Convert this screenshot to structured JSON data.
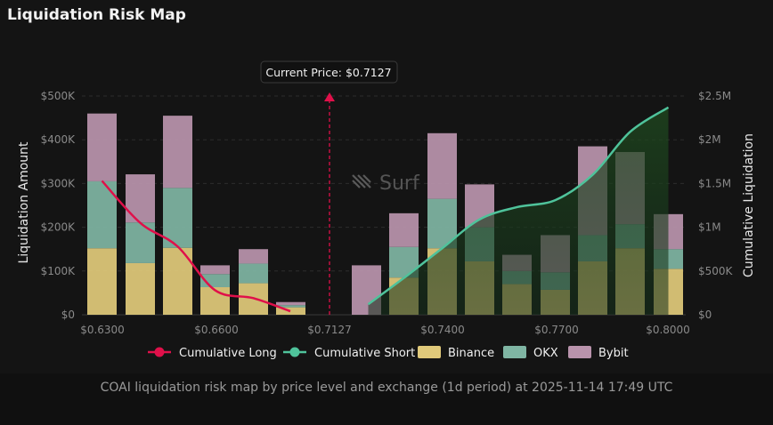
{
  "title": "Liquidation Risk Map",
  "caption": "COAI liquidation risk map by price level and exchange (1d period) at 2025-11-14 17:49 UTC",
  "watermark": "Surf",
  "tooltip": "Current Price: $0.7127",
  "colors": {
    "binance": "#e0c97a",
    "okx": "#7fb5a3",
    "bybit": "#b993ac",
    "long": "#e0104a",
    "short": "#4fc39b",
    "short_fill": "#1e3a1e"
  },
  "chart_data": {
    "type": "bar",
    "stacked": true,
    "current_price": 0.7127,
    "x_ticks": [
      "$0.6300",
      "$0.6600",
      "$0.7127",
      "$0.7400",
      "$0.7700",
      "$0.8000"
    ],
    "ylabel": "Liquidation Amount",
    "y2label": "Cumulative Liquidation",
    "y_ticks": [
      "$0",
      "$100K",
      "$200K",
      "$300K",
      "$400K",
      "$500K"
    ],
    "y2_ticks": [
      "$0",
      "$500K",
      "$1M",
      "$1.5M",
      "$2M",
      "$2.5M"
    ],
    "ylim": [
      0,
      500000
    ],
    "y2lim": [
      0,
      2500000
    ],
    "legend": [
      "Cumulative Long",
      "Cumulative Short",
      "Binance",
      "OKX",
      "Bybit"
    ],
    "legend_position": "bottom",
    "long_bars": [
      {
        "binance": 152000,
        "okx": 153000,
        "bybit": 155000
      },
      {
        "binance": 118000,
        "okx": 93000,
        "bybit": 110000
      },
      {
        "binance": 153000,
        "okx": 137000,
        "bybit": 165000
      },
      {
        "binance": 63000,
        "okx": 30000,
        "bybit": 20000
      },
      {
        "binance": 72000,
        "okx": 45000,
        "bybit": 33000
      },
      {
        "binance": 17000,
        "okx": 5000,
        "bybit": 7000
      }
    ],
    "short_bars": [
      {
        "binance": 0,
        "okx": 0,
        "bybit": 113000
      },
      {
        "binance": 85000,
        "okx": 70000,
        "bybit": 77000
      },
      {
        "binance": 152000,
        "okx": 113000,
        "bybit": 150000
      },
      {
        "binance": 122000,
        "okx": 78000,
        "bybit": 98000
      },
      {
        "binance": 70000,
        "okx": 30000,
        "bybit": 37000
      },
      {
        "binance": 57000,
        "okx": 40000,
        "bybit": 85000
      },
      {
        "binance": 122000,
        "okx": 60000,
        "bybit": 203000
      },
      {
        "binance": 152000,
        "okx": 55000,
        "bybit": 165000
      },
      {
        "binance": 105000,
        "okx": 45000,
        "bybit": 80000
      }
    ],
    "cumulative_long": [
      1530000,
      1050000,
      780000,
      280000,
      190000,
      40000
    ],
    "cumulative_short": [
      120000,
      420000,
      760000,
      1090000,
      1230000,
      1310000,
      1600000,
      2090000,
      2370000
    ]
  }
}
